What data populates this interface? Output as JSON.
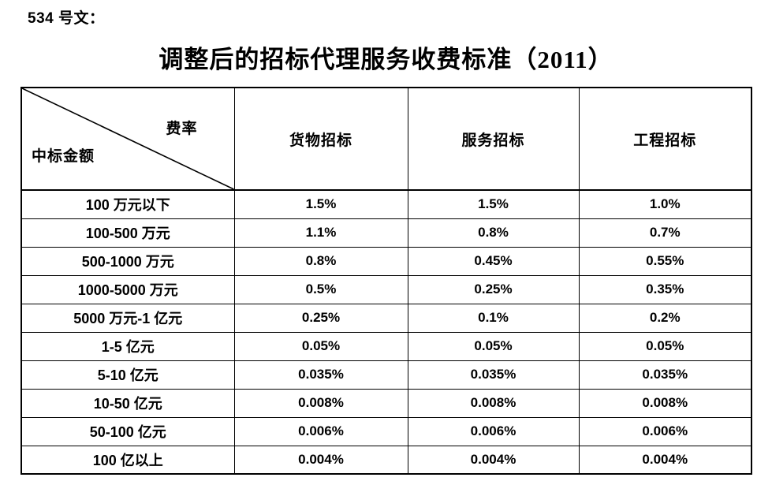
{
  "doc_label": "534 号文：",
  "title": "调整后的招标代理服务收费标准（2011）",
  "table": {
    "corner": {
      "top_right": "费率",
      "bottom_left": "中标金额"
    },
    "columns": [
      "货物招标",
      "服务招标",
      "工程招标"
    ],
    "rows": [
      {
        "label": "100 万元以下",
        "values": [
          "1.5%",
          "1.5%",
          "1.0%"
        ]
      },
      {
        "label": "100-500 万元",
        "values": [
          "1.1%",
          "0.8%",
          "0.7%"
        ]
      },
      {
        "label": "500-1000 万元",
        "values": [
          "0.8%",
          "0.45%",
          "0.55%"
        ]
      },
      {
        "label": "1000-5000 万元",
        "values": [
          "0.5%",
          "0.25%",
          "0.35%"
        ]
      },
      {
        "label": "5000 万元-1 亿元",
        "values": [
          "0.25%",
          "0.1%",
          "0.2%"
        ]
      },
      {
        "label": "1-5 亿元",
        "values": [
          "0.05%",
          "0.05%",
          "0.05%"
        ]
      },
      {
        "label": "5-10 亿元",
        "values": [
          "0.035%",
          "0.035%",
          "0.035%"
        ]
      },
      {
        "label": "10-50 亿元",
        "values": [
          "0.008%",
          "0.008%",
          "0.008%"
        ]
      },
      {
        "label": "50-100 亿元",
        "values": [
          "0.006%",
          "0.006%",
          "0.006%"
        ]
      },
      {
        "label": "100 亿以上",
        "values": [
          "0.004%",
          "0.004%",
          "0.004%"
        ]
      }
    ]
  },
  "colors": {
    "text": "#000000",
    "border": "#000000",
    "background": "#ffffff"
  }
}
